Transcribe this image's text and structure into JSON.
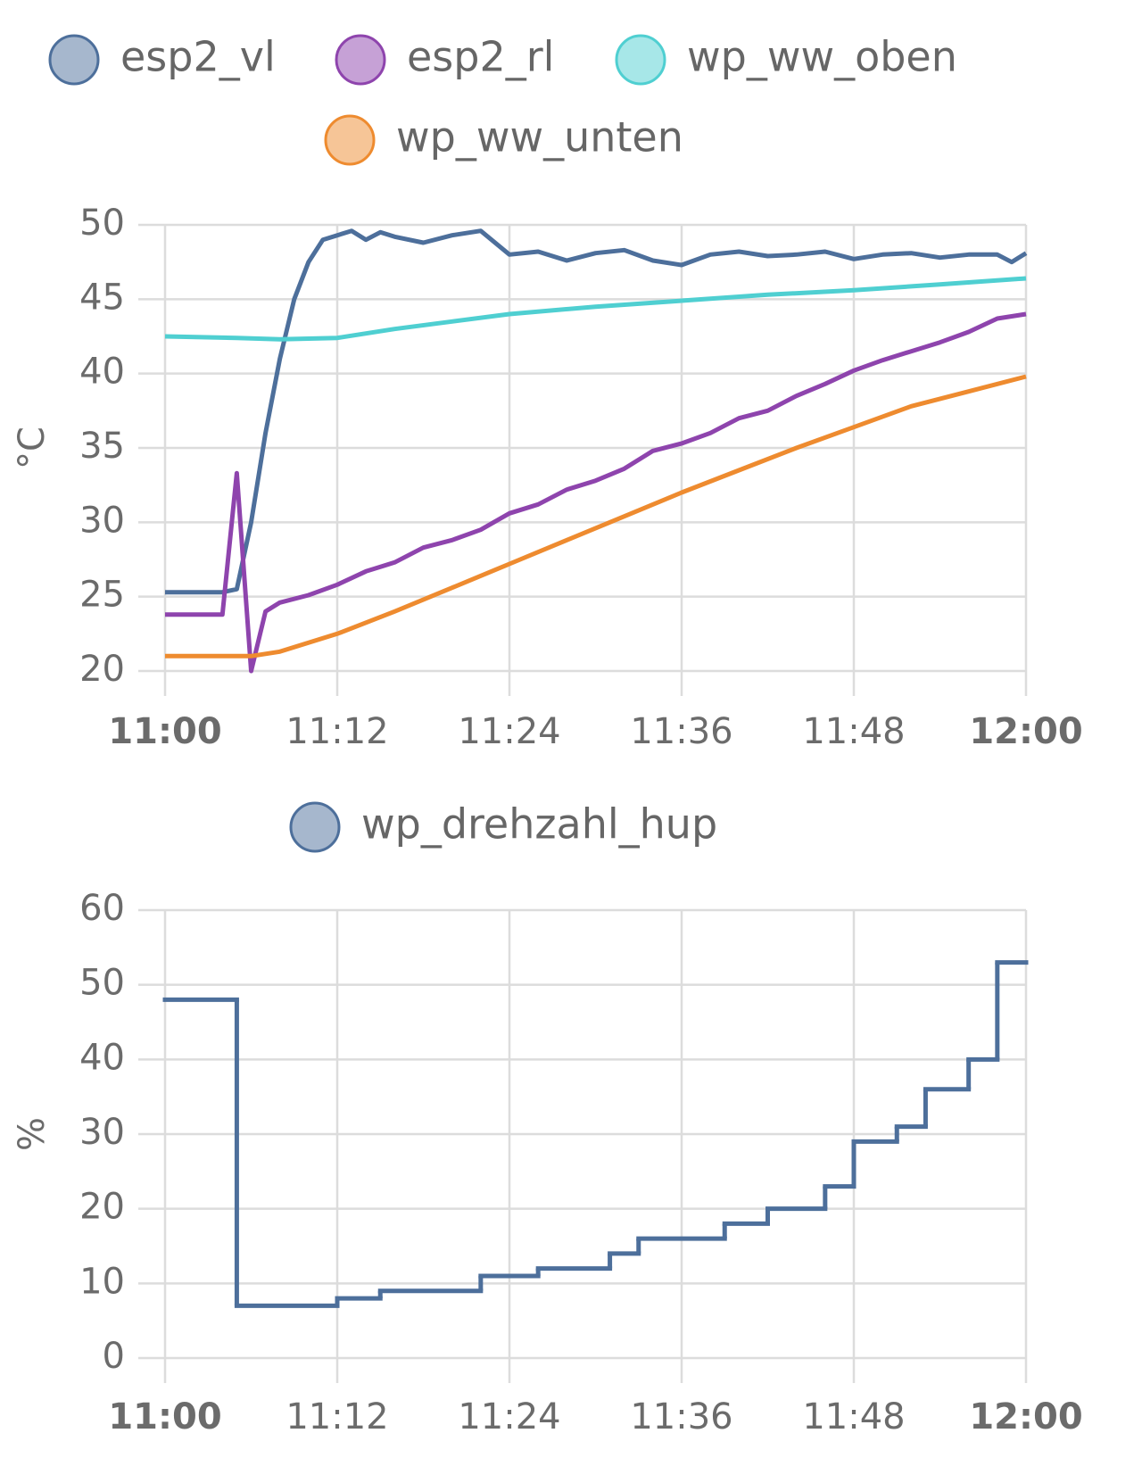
{
  "chart_data": [
    {
      "type": "line",
      "ylabel": "°C",
      "ylim": [
        20,
        50
      ],
      "yticks": [
        20,
        25,
        30,
        35,
        40,
        45,
        50
      ],
      "xlim": [
        "11:00",
        "12:00"
      ],
      "xticks": [
        "11:00",
        "11:12",
        "11:24",
        "11:36",
        "11:48",
        "12:00"
      ],
      "grid": true,
      "series": [
        {
          "name": "esp2_vl",
          "color": "#4d6f9b",
          "x": [
            "11:00",
            "11:04",
            "11:05",
            "11:06",
            "11:07",
            "11:08",
            "11:09",
            "11:10",
            "11:11",
            "11:12",
            "11:13",
            "11:14",
            "11:15",
            "11:16",
            "11:18",
            "11:20",
            "11:22",
            "11:24",
            "11:26",
            "11:28",
            "11:30",
            "11:32",
            "11:34",
            "11:36",
            "11:38",
            "11:40",
            "11:42",
            "11:44",
            "11:46",
            "11:48",
            "11:50",
            "11:52",
            "11:54",
            "11:56",
            "11:58",
            "11:59",
            "12:00"
          ],
          "values": [
            25.3,
            25.3,
            25.5,
            30,
            36,
            41,
            45,
            47.5,
            49,
            49.3,
            49.6,
            49,
            49.5,
            49.2,
            48.8,
            49.3,
            49.6,
            48,
            48.2,
            47.6,
            48.1,
            48.3,
            47.6,
            47.3,
            48,
            48.2,
            47.9,
            48,
            48.2,
            47.7,
            48,
            48.1,
            47.8,
            48,
            48,
            47.5,
            48.1
          ]
        },
        {
          "name": "esp2_rl",
          "color": "#8e44ad",
          "x": [
            "11:00",
            "11:04",
            "11:05",
            "11:06",
            "11:07",
            "11:08",
            "11:10",
            "11:12",
            "11:14",
            "11:16",
            "11:18",
            "11:20",
            "11:22",
            "11:24",
            "11:26",
            "11:28",
            "11:30",
            "11:32",
            "11:34",
            "11:36",
            "11:38",
            "11:40",
            "11:42",
            "11:44",
            "11:46",
            "11:48",
            "11:50",
            "11:52",
            "11:54",
            "11:56",
            "11:58",
            "12:00"
          ],
          "values": [
            23.8,
            23.8,
            33.3,
            20,
            24,
            24.6,
            25.1,
            25.8,
            26.7,
            27.3,
            28.3,
            28.8,
            29.5,
            30.6,
            31.2,
            32.2,
            32.8,
            33.6,
            34.8,
            35.3,
            36,
            37,
            37.5,
            38.5,
            39.3,
            40.2,
            40.9,
            41.5,
            42.1,
            42.8,
            43.7,
            44
          ]
        },
        {
          "name": "wp_ww_oben",
          "color": "#4fcfd1",
          "x": [
            "11:00",
            "11:05",
            "11:08",
            "11:12",
            "11:16",
            "11:20",
            "11:24",
            "11:30",
            "11:36",
            "11:42",
            "11:48",
            "11:54",
            "12:00"
          ],
          "values": [
            42.5,
            42.4,
            42.3,
            42.4,
            43,
            43.5,
            44,
            44.5,
            44.9,
            45.3,
            45.6,
            46,
            46.4
          ]
        },
        {
          "name": "wp_ww_unten",
          "color": "#ee8b2f",
          "x": [
            "11:00",
            "11:06",
            "11:08",
            "11:12",
            "11:16",
            "11:20",
            "11:24",
            "11:28",
            "11:32",
            "11:36",
            "11:40",
            "11:44",
            "11:48",
            "11:52",
            "11:56",
            "12:00"
          ],
          "values": [
            21,
            21,
            21.3,
            22.5,
            24,
            25.6,
            27.2,
            28.8,
            30.4,
            32,
            33.5,
            35,
            36.4,
            37.8,
            38.8,
            39.8
          ]
        }
      ]
    },
    {
      "type": "step",
      "ylabel": "%",
      "ylim": [
        0,
        60
      ],
      "yticks": [
        0,
        10,
        20,
        30,
        40,
        50,
        60
      ],
      "xlim": [
        "11:00",
        "12:00"
      ],
      "xticks": [
        "11:00",
        "11:12",
        "11:24",
        "11:36",
        "11:48",
        "12:00"
      ],
      "grid": true,
      "series": [
        {
          "name": "wp_drehzahl_hup",
          "color": "#4d6f9b",
          "x": [
            "11:00",
            "11:05",
            "11:12",
            "11:15",
            "11:22",
            "11:26",
            "11:31",
            "11:33",
            "11:39",
            "11:42",
            "11:46",
            "11:48",
            "11:51",
            "11:53",
            "11:56",
            "11:58"
          ],
          "values": [
            48,
            7,
            8,
            9,
            11,
            12,
            14,
            16,
            18,
            20,
            23,
            29,
            31,
            36,
            40,
            53
          ]
        }
      ]
    }
  ]
}
